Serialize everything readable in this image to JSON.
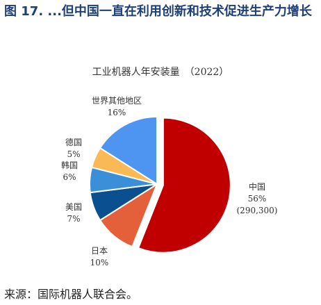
{
  "figure": {
    "title": "图 17. ...但中国一直在利用创新和技术促进生产力增长",
    "source": "来源：国际机器人联合会。"
  },
  "chart_data": {
    "type": "pie",
    "title": "工业机器人年安装量　（2022）",
    "slices": [
      {
        "label": "中国",
        "percent_label": "56%",
        "value": 56,
        "extra": "(290,300)",
        "color": "#c00000",
        "exploded": true
      },
      {
        "label": "日本",
        "percent_label": "10%",
        "value": 10,
        "color": "#e4603b"
      },
      {
        "label": "美国",
        "percent_label": "7%",
        "value": 7,
        "color": "#0a5091"
      },
      {
        "label": "韩国",
        "percent_label": "6%",
        "value": 6,
        "color": "#3a8fd8"
      },
      {
        "label": "德国",
        "percent_label": "5%",
        "value": 5,
        "color": "#f9b955"
      },
      {
        "label": "世界其他地区",
        "percent_label": "16%",
        "value": 16,
        "color": "#4d95f0"
      }
    ],
    "start_angle": "12 o'clock",
    "direction": "clockwise"
  }
}
